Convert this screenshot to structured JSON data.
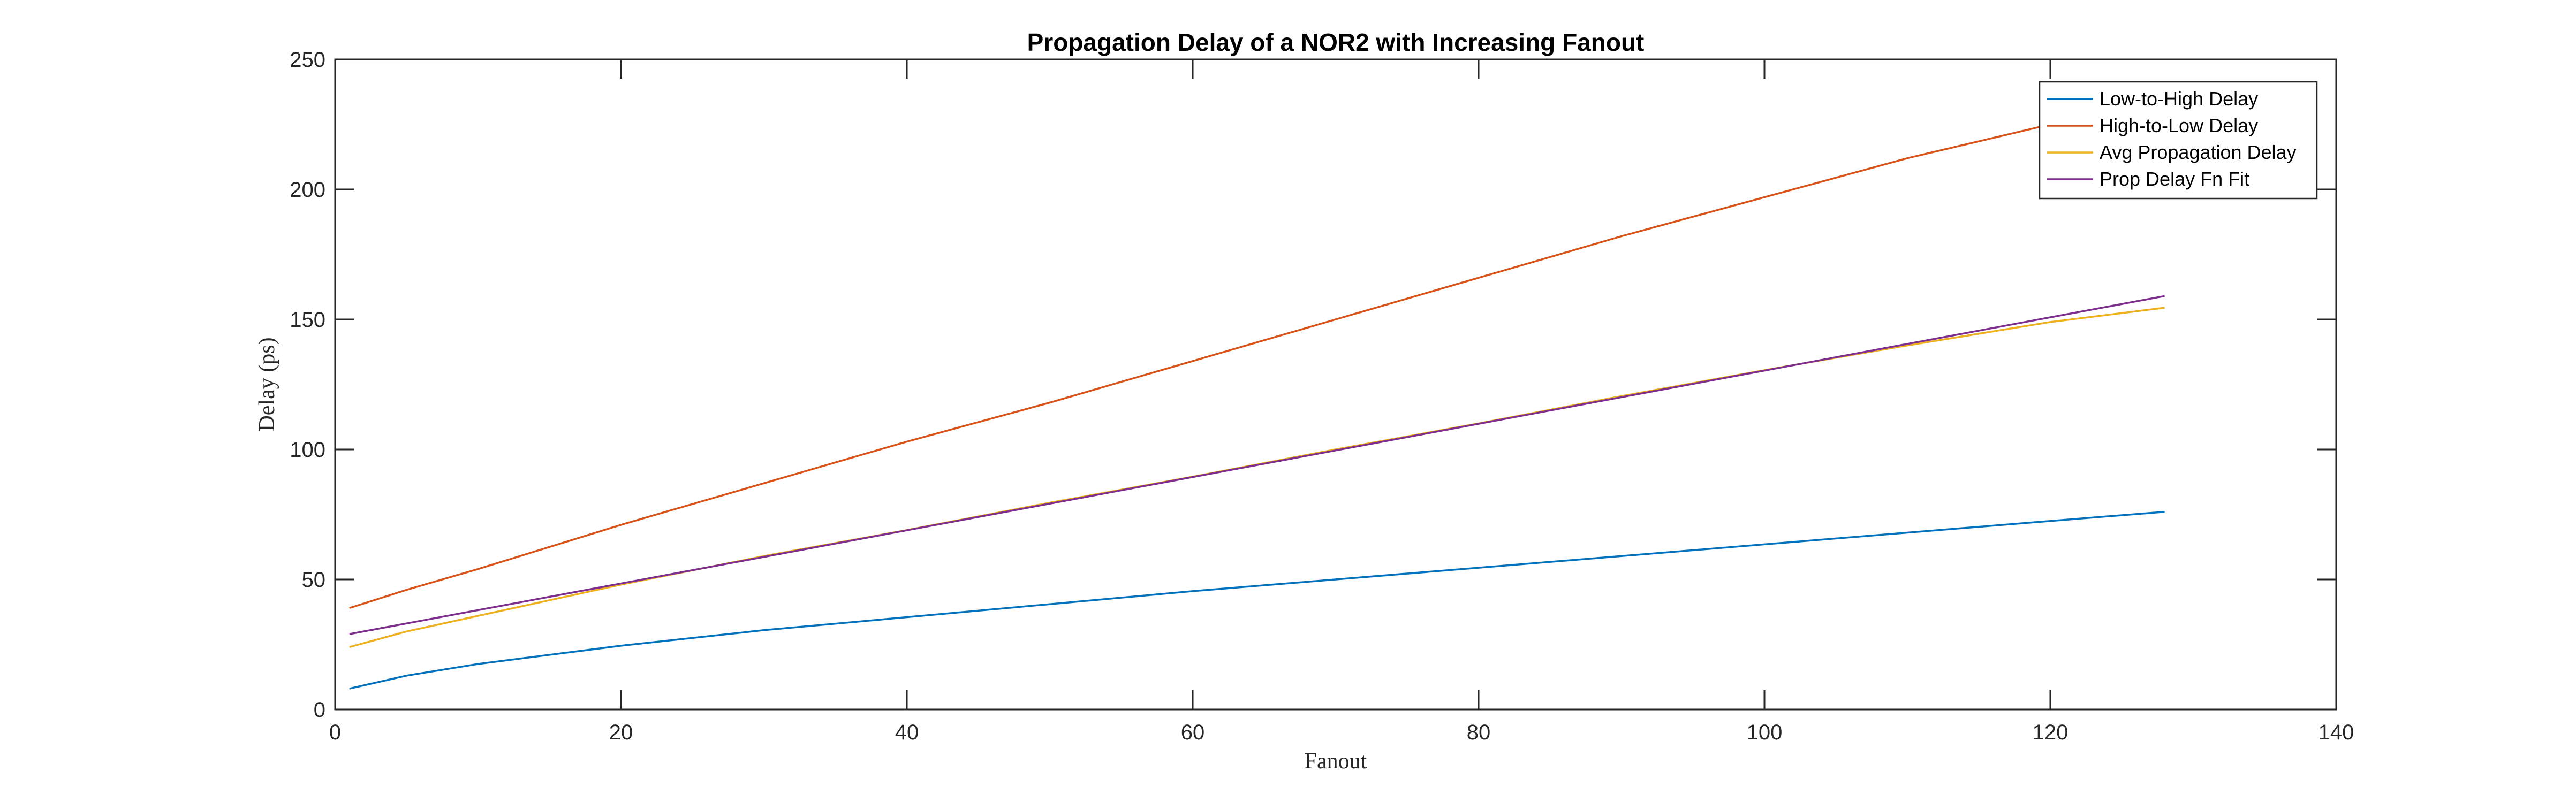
{
  "chart_data": {
    "type": "line",
    "title": "Propagation Delay of a NOR2 with Increasing Fanout",
    "xlabel": "Fanout",
    "ylabel": "Delay  (ps)",
    "xlim": [
      0,
      140
    ],
    "ylim": [
      0,
      250
    ],
    "xticks": [
      0,
      20,
      40,
      60,
      80,
      100,
      120,
      140
    ],
    "yticks": [
      0,
      50,
      100,
      150,
      200,
      250
    ],
    "grid": false,
    "legend_position": "top-right",
    "series": [
      {
        "name": "Low-to-High Delay",
        "color": "#0072BD",
        "x": [
          1,
          5,
          10,
          20,
          30,
          40,
          50,
          60,
          70,
          80,
          90,
          100,
          110,
          120,
          128
        ],
        "y": [
          8,
          13,
          17.5,
          24.5,
          30.5,
          35.5,
          40.5,
          45.5,
          50,
          54.5,
          59,
          63.5,
          68,
          72.5,
          76
        ]
      },
      {
        "name": "High-to-Low Delay",
        "color": "#D95319",
        "x": [
          1,
          5,
          10,
          20,
          30,
          40,
          50,
          60,
          70,
          80,
          90,
          100,
          110,
          120,
          128
        ],
        "y": [
          39,
          46,
          54,
          71,
          87,
          103,
          118,
          134,
          150,
          166,
          182,
          197,
          212,
          225,
          233
        ]
      },
      {
        "name": "Avg Propagation Delay",
        "color": "#EDB120",
        "x": [
          1,
          5,
          10,
          20,
          30,
          40,
          50,
          60,
          70,
          80,
          90,
          100,
          110,
          120,
          128
        ],
        "y": [
          24,
          30,
          36,
          48,
          59,
          69,
          79.5,
          89.5,
          100,
          110,
          120.5,
          130.5,
          140,
          149,
          154.5
        ]
      },
      {
        "name": "Prop Delay Fn Fit",
        "color": "#7E2F8E",
        "x": [
          1,
          128
        ],
        "y": [
          29,
          159
        ]
      }
    ]
  }
}
